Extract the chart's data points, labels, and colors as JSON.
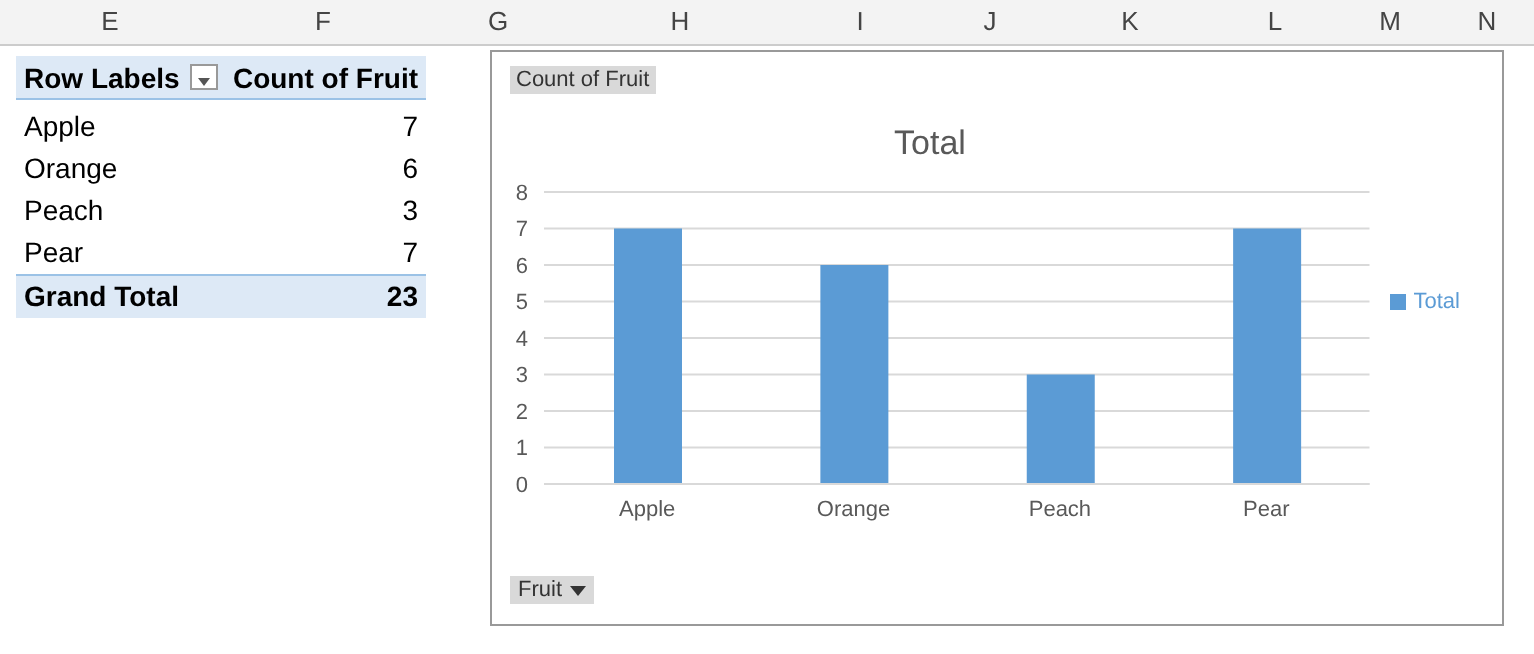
{
  "chart_data": {
    "type": "bar",
    "title": "Total",
    "categories": [
      "Apple",
      "Orange",
      "Peach",
      "Pear"
    ],
    "series": [
      {
        "name": "Total",
        "color": "#5b9bd5",
        "values": [
          7,
          6,
          3,
          7
        ]
      }
    ],
    "ylim": [
      0,
      8
    ],
    "yticks": [
      0,
      1,
      2,
      3,
      4,
      5,
      6,
      7,
      8
    ],
    "grid": "y",
    "legend": "right",
    "annotations": [
      "E",
      "F",
      "G",
      "H",
      "I",
      "J",
      "K",
      "L",
      "M",
      "N",
      "Row Labels",
      "Count of Fruit",
      "Grand Total",
      "23",
      "Count of Fruit",
      "Fruit",
      "7",
      "6",
      "3",
      "7"
    ]
  }
}
